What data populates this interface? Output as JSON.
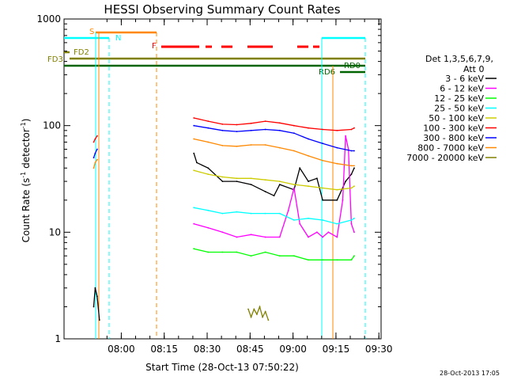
{
  "chart_data": {
    "type": "line",
    "title": "HESSI Observing Summary Count Rates",
    "xlabel": "Start Time (28-Oct-13 07:50:22)",
    "ylabel_main": "Count Rate (s",
    "ylabel_sup1": "-1",
    "ylabel_mid": " detector",
    "ylabel_sup2": "-1",
    "ylabel_end": ")",
    "y_scale": "log",
    "ylim": [
      1,
      1000
    ],
    "x_range_min": [
      -10.37,
      100.4
    ],
    "x_ticks": [
      "08:00",
      "08:15",
      "08:30",
      "08:45",
      "09:00",
      "09:15",
      "09:30"
    ],
    "y_ticks": [
      "1",
      "10",
      "100",
      "1000"
    ],
    "legend": {
      "header1": "Det 1,3,5,6,7,9,",
      "header2": "Att 0",
      "placement": "right"
    },
    "series": [
      {
        "name": "3 - 6 keV",
        "color": "#000000",
        "segments": [
          {
            "x": [
              0,
              0.5,
              1.2,
              2
            ],
            "y": [
              2,
              3,
              2.5,
              1.5
            ]
          },
          {
            "x": [
              35,
              36,
              40,
              45,
              50,
              55,
              60,
              63,
              65,
              70,
              72,
              75,
              78,
              80,
              85,
              88,
              90,
              91
            ],
            "y": [
              55,
              45,
              40,
              30,
              30,
              28,
              24,
              22,
              28,
              25,
              40,
              30,
              32,
              20,
              20,
              30,
              35,
              40
            ]
          }
        ]
      },
      {
        "name": "6 - 12 keV",
        "color": "#ff00ff",
        "segments": [
          {
            "x": [
              35,
              40,
              45,
              50,
              55,
              60,
              65,
              68,
              70,
              72,
              75,
              78,
              80,
              82,
              85,
              87,
              88,
              89,
              90,
              91
            ],
            "y": [
              12,
              11,
              10,
              9,
              9.5,
              9,
              9,
              16,
              26,
              12,
              9,
              10,
              9,
              10,
              9,
              20,
              80,
              60,
              12,
              10
            ]
          }
        ]
      },
      {
        "name": "12 - 25 keV",
        "color": "#00ff00",
        "segments": [
          {
            "x": [
              35,
              40,
              45,
              50,
              55,
              60,
              65,
              70,
              75,
              80,
              85,
              90,
              91
            ],
            "y": [
              7,
              6.5,
              6.5,
              6.5,
              6,
              6.5,
              6,
              6,
              5.5,
              5.5,
              5.5,
              5.5,
              6
            ]
          }
        ]
      },
      {
        "name": "25 - 50 keV",
        "color": "#00ffff",
        "segments": [
          {
            "x": [
              35,
              40,
              45,
              50,
              55,
              60,
              65,
              70,
              75,
              80,
              85,
              90,
              91
            ],
            "y": [
              17,
              16,
              15,
              15.5,
              15,
              15,
              15,
              13,
              13.5,
              13,
              12,
              13,
              13.5
            ]
          }
        ]
      },
      {
        "name": "50 - 100 keV",
        "color": "#cccc00",
        "segments": [
          {
            "x": [
              35,
              40,
              45,
              50,
              55,
              60,
              65,
              70,
              75,
              80,
              85,
              90,
              91
            ],
            "y": [
              38,
              35,
              33,
              32,
              32,
              31,
              30,
              28,
              27,
              26,
              25,
              26,
              27
            ]
          }
        ]
      },
      {
        "name": "100 - 300 keV",
        "color": "#ff0000",
        "segments": [
          {
            "x": [
              0,
              0.5,
              1.2
            ],
            "y": [
              70,
              75,
              80
            ]
          },
          {
            "x": [
              35,
              40,
              45,
              50,
              55,
              60,
              65,
              70,
              75,
              80,
              85,
              90,
              91
            ],
            "y": [
              118,
              110,
              103,
              102,
              105,
              110,
              106,
              100,
              95,
              92,
              90,
              92,
              95
            ]
          }
        ]
      },
      {
        "name": "300 - 800 keV",
        "color": "#0000ff",
        "segments": [
          {
            "x": [
              0,
              0.5,
              1.2
            ],
            "y": [
              50,
              55,
              60
            ]
          },
          {
            "x": [
              35,
              40,
              45,
              50,
              55,
              60,
              65,
              70,
              75,
              80,
              85,
              90,
              91
            ],
            "y": [
              100,
              95,
              90,
              88,
              90,
              92,
              90,
              85,
              75,
              68,
              62,
              58,
              58
            ]
          }
        ]
      },
      {
        "name": "800 - 7000 keV",
        "color": "#ff8800",
        "segments": [
          {
            "x": [
              0,
              0.5,
              1.2
            ],
            "y": [
              40,
              45,
              48
            ]
          },
          {
            "x": [
              35,
              40,
              45,
              50,
              55,
              60,
              65,
              70,
              75,
              80,
              85,
              90,
              91
            ],
            "y": [
              75,
              70,
              65,
              64,
              66,
              66,
              62,
              58,
              52,
              47,
              44,
              42,
              42
            ]
          }
        ]
      },
      {
        "name": "7000 - 20000 keV",
        "color": "#808000",
        "segments": [
          {
            "x": [
              54,
              55,
              56,
              57,
              58,
              59,
              60,
              61
            ],
            "y": [
              1.9,
              1.6,
              1.9,
              1.7,
              2,
              1.6,
              1.8,
              1.5
            ]
          }
        ]
      }
    ],
    "annotations": {
      "flags": [
        {
          "label": "S",
          "color": "#ff8800"
        },
        {
          "label": "N",
          "color": "#00ffff"
        },
        {
          "label": "F",
          "color": "#ff0000"
        },
        {
          "label": "FD2",
          "color": "#808000"
        },
        {
          "label": "FD3",
          "color": "#808000"
        },
        {
          "label": "RD0",
          "color": "#006400"
        },
        {
          "label": "RD6",
          "color": "#006400"
        }
      ]
    },
    "grid": false
  },
  "footer_timestamp": "28-Oct-2013 17:05"
}
